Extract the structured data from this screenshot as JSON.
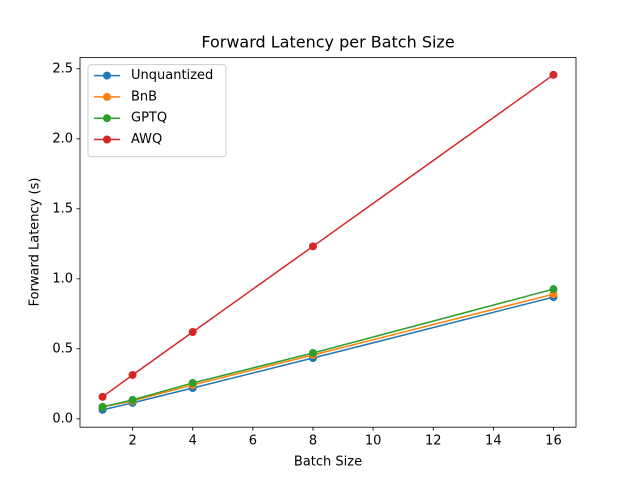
{
  "chart_data": {
    "type": "line",
    "title": "Forward Latency per Batch Size",
    "x_label": "Batch Size",
    "y_label": "Forward Latency (s)",
    "x": [
      1,
      2,
      4,
      8,
      16
    ],
    "series": [
      {
        "name": "Unquantized",
        "color": "#1f77b4",
        "values": [
          0.064,
          0.114,
          0.22,
          0.434,
          0.869
        ]
      },
      {
        "name": "BnB",
        "color": "#ff7f0e",
        "values": [
          0.085,
          0.128,
          0.242,
          0.456,
          0.89
        ]
      },
      {
        "name": "GPTQ",
        "color": "#2ca02c",
        "values": [
          0.085,
          0.135,
          0.256,
          0.47,
          0.926
        ]
      },
      {
        "name": "AWQ",
        "color": "#d62728",
        "values": [
          0.157,
          0.313,
          0.62,
          1.232,
          2.457
        ]
      }
    ],
    "xlim": [
      0.25,
      16.75
    ],
    "xticks": [
      2,
      4,
      6,
      8,
      10,
      12,
      14,
      16
    ],
    "ylim": [
      -0.06,
      2.58
    ],
    "yticks": [
      {
        "value": 0,
        "label": "0.0"
      },
      0.5,
      {
        "value": 1,
        "label": "1.0"
      },
      1.5,
      {
        "value": 2,
        "label": "2.0"
      },
      2.5
    ],
    "legend": "upper left"
  }
}
